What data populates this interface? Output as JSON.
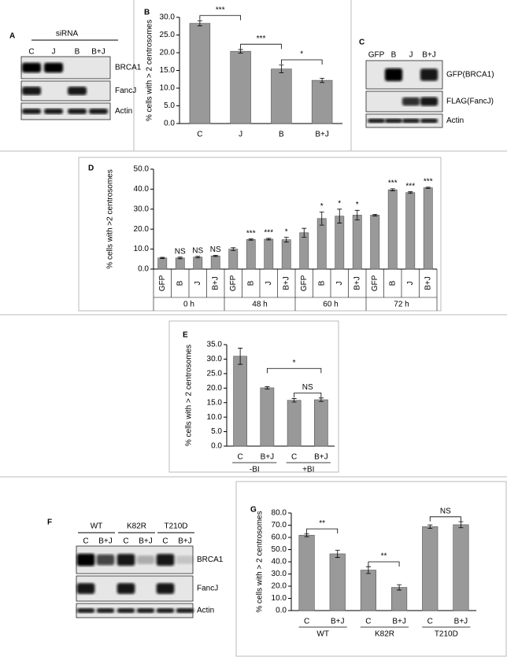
{
  "chart_data": [
    {
      "type": "bar",
      "panel_label": "B",
      "ylabel": "% cells with > 2 centrosomes",
      "color": "#999999",
      "categories": [
        "C",
        "J",
        "B",
        "B+J"
      ],
      "values": [
        28.3,
        20.4,
        15.4,
        12.2
      ],
      "errors": [
        0.7,
        0.5,
        1.1,
        0.6
      ],
      "ylim": [
        0,
        30
      ],
      "yticks": [
        {
          "value": 0,
          "label": "0.0"
        },
        {
          "value": 5,
          "label": "5.0"
        },
        {
          "value": 10,
          "label": "10.0"
        },
        {
          "value": 15,
          "label": "15.0"
        },
        {
          "value": 20,
          "label": "20.0"
        },
        {
          "value": 25,
          "label": "25.0"
        },
        {
          "value": 30,
          "label": "30.0"
        }
      ],
      "annotations": [
        {
          "text": "***",
          "between": [
            0,
            1
          ]
        },
        {
          "text": "***",
          "between": [
            1,
            2
          ]
        },
        {
          "text": "*",
          "between": [
            2,
            3
          ]
        }
      ]
    },
    {
      "type": "bar",
      "panel_label": "D",
      "ylabel": "% cells with >2 centrosomes",
      "color": "#999999",
      "categories": [
        "GFP",
        "B",
        "J",
        "B+J",
        "GFP",
        "B",
        "J",
        "B+J",
        "GFP",
        "B",
        "J",
        "B+J",
        "GFP",
        "B",
        "J",
        "B+J"
      ],
      "groups": [
        "0 h",
        "48 h",
        "60 h",
        "72 h"
      ],
      "values": [
        5.6,
        5.6,
        6.0,
        6.6,
        10.0,
        14.8,
        15.0,
        14.7,
        18.2,
        25.3,
        26.5,
        27.0,
        27.0,
        39.7,
        38.3,
        40.7
      ],
      "errors": [
        0.3,
        0.4,
        0.4,
        0.3,
        0.7,
        0.3,
        0.4,
        1.2,
        2.2,
        3.3,
        3.5,
        2.4,
        0.4,
        0.5,
        0.4,
        0.3
      ],
      "significance": [
        null,
        "NS",
        "NS",
        "NS",
        null,
        "***",
        "***",
        "*",
        null,
        "*",
        "*",
        "*",
        null,
        "***",
        "***",
        "***"
      ],
      "ylim": [
        0,
        50
      ],
      "yticks": [
        {
          "value": 0,
          "label": "0.0"
        },
        {
          "value": 10,
          "label": "10.0"
        },
        {
          "value": 20,
          "label": "20.0"
        },
        {
          "value": 30,
          "label": "30.0"
        },
        {
          "value": 40,
          "label": "40.0"
        },
        {
          "value": 50,
          "label": "50.0"
        }
      ]
    },
    {
      "type": "bar",
      "panel_label": "E",
      "ylabel": "% cells with > 2 centrosomes",
      "color": "#999999",
      "categories": [
        "C",
        "B+J",
        "C",
        "B+J"
      ],
      "groups": [
        "-BI",
        "+BI"
      ],
      "values": [
        31.0,
        20.1,
        15.8,
        16.0
      ],
      "errors": [
        2.8,
        0.4,
        0.6,
        0.6
      ],
      "ylim": [
        0,
        35
      ],
      "yticks": [
        {
          "value": 0,
          "label": "0.0"
        },
        {
          "value": 5,
          "label": "5.0"
        },
        {
          "value": 10,
          "label": "10.0"
        },
        {
          "value": 15,
          "label": "15.0"
        },
        {
          "value": 20,
          "label": "20.0"
        },
        {
          "value": 25,
          "label": "25.0"
        },
        {
          "value": 30,
          "label": "30.0"
        },
        {
          "value": 35,
          "label": "35.0"
        }
      ],
      "annotations": [
        {
          "text": "*",
          "between": [
            1,
            3
          ]
        },
        {
          "text": "NS",
          "between": [
            2,
            3
          ]
        }
      ]
    },
    {
      "type": "bar",
      "panel_label": "G",
      "ylabel": "% cells with > 2 centrosomes",
      "color": "#999999",
      "categories": [
        "C",
        "B+J",
        "C",
        "B+J",
        "C",
        "B+J"
      ],
      "groups": [
        "WT",
        "K82R",
        "T210D"
      ],
      "values": [
        61.8,
        46.5,
        33.2,
        19.0,
        68.8,
        70.4
      ],
      "errors": [
        1.2,
        3.0,
        2.8,
        2.2,
        1.4,
        2.5
      ],
      "ylim": [
        0,
        80
      ],
      "yticks": [
        {
          "value": 0,
          "label": "0.0"
        },
        {
          "value": 10,
          "label": "10.0"
        },
        {
          "value": 20,
          "label": "20.0"
        },
        {
          "value": 30,
          "label": "30.0"
        },
        {
          "value": 40,
          "label": "40.0"
        },
        {
          "value": 50,
          "label": "50.0"
        },
        {
          "value": 60,
          "label": "60.0"
        },
        {
          "value": 70,
          "label": "70.0"
        },
        {
          "value": 80,
          "label": "80.0"
        }
      ],
      "annotations": [
        {
          "text": "**",
          "between": [
            0,
            1
          ]
        },
        {
          "text": "**",
          "between": [
            2,
            3
          ]
        },
        {
          "text": "NS",
          "between": [
            4,
            5
          ]
        }
      ]
    }
  ],
  "blots": [
    {
      "panel_label": "A",
      "header": "siRNA",
      "lanes": [
        "C",
        "J",
        "B",
        "B+J"
      ],
      "rows": [
        "BRCA1",
        "FancJ",
        "Actin"
      ]
    },
    {
      "panel_label": "C",
      "lanes": [
        "GFP",
        "B",
        "J",
        "B+J"
      ],
      "rows": [
        "GFP(BRCA1)",
        "FLAG(FancJ)",
        "Actin"
      ]
    },
    {
      "panel_label": "F",
      "groups": [
        "WT",
        "K82R",
        "T210D"
      ],
      "lanes": [
        "C",
        "B+J",
        "C",
        "B+J",
        "C",
        "B+J"
      ],
      "rows": [
        "BRCA1",
        "FancJ",
        "Actin"
      ]
    }
  ]
}
